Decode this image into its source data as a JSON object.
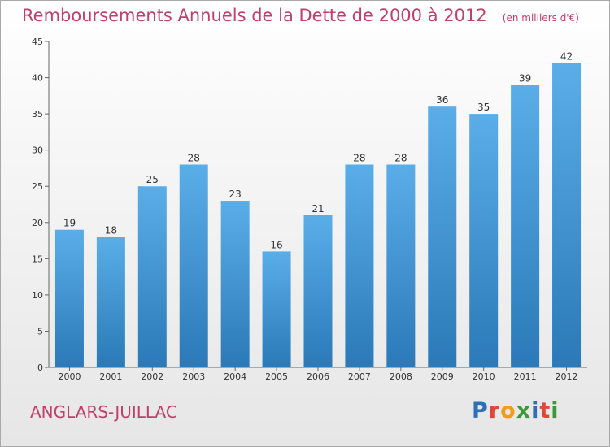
{
  "header": {
    "title": "Remboursements Annuels de la Dette de 2000 à 2012",
    "subtitle": "(en milliers d'€)"
  },
  "footer": {
    "city": "ANGLARS-JUILLAC",
    "logo_letters": [
      {
        "ch": "P",
        "color": "#2e6fb7"
      },
      {
        "ch": "r",
        "color": "#e0463a"
      },
      {
        "ch": "o",
        "color": "#f29b1d"
      },
      {
        "ch": "x",
        "color": "#3a9a3a"
      },
      {
        "ch": "i",
        "color": "#2e6fb7"
      },
      {
        "ch": "t",
        "color": "#e0463a"
      },
      {
        "ch": "i",
        "color": "#3a9a3a"
      }
    ]
  },
  "chart_data": {
    "type": "bar",
    "title": "Remboursements Annuels de la Dette de 2000 à 2012",
    "subtitle": "(en milliers d'€)",
    "categories": [
      "2000",
      "2001",
      "2002",
      "2003",
      "2004",
      "2005",
      "2006",
      "2007",
      "2008",
      "2009",
      "2010",
      "2011",
      "2012"
    ],
    "values": [
      19,
      18,
      25,
      28,
      23,
      16,
      21,
      28,
      28,
      36,
      35,
      39,
      42
    ],
    "ylim": [
      0,
      45
    ],
    "yticks": [
      0,
      5,
      10,
      15,
      20,
      25,
      30,
      35,
      40,
      45
    ],
    "xlabel": "",
    "ylabel": "",
    "grid": false,
    "bar_color_top": "#5aaee8",
    "bar_color_bottom": "#2b79b8",
    "title_color": "#c0406a"
  }
}
